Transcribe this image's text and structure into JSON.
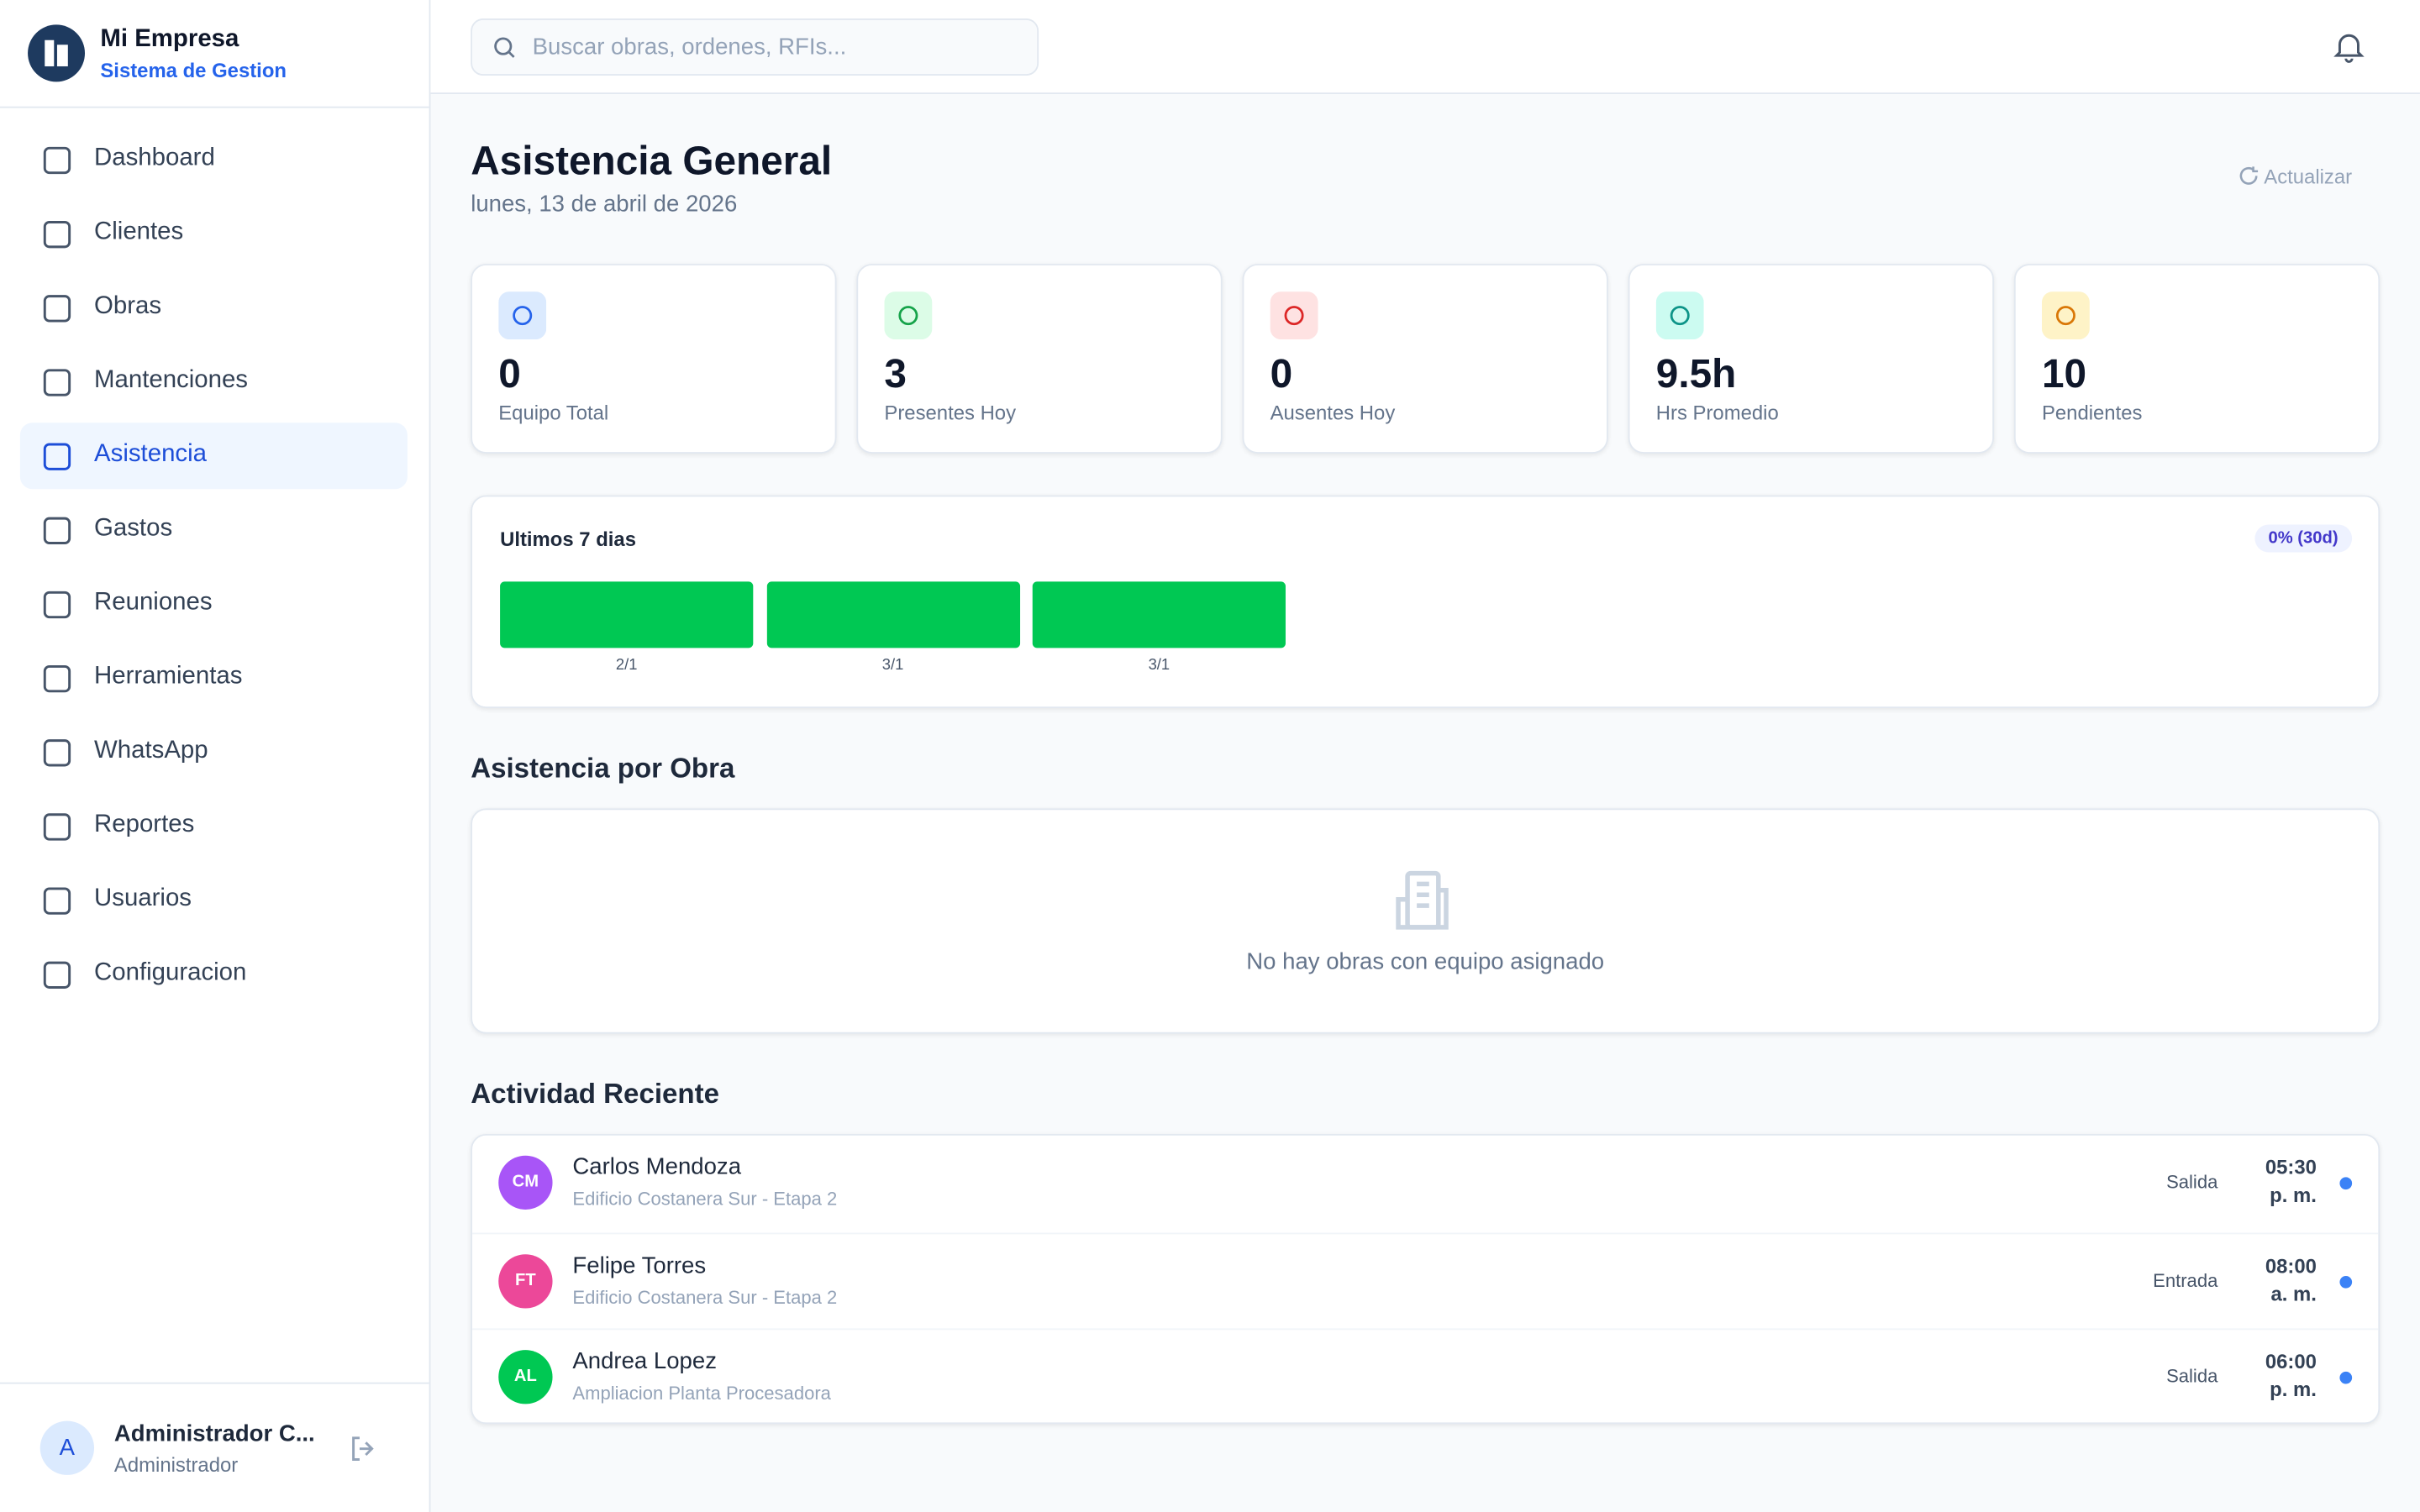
{
  "sidebar": {
    "brand": "Mi Empresa",
    "subtitle": "Sistema de Gestion",
    "nav": [
      {
        "label": "Dashboard",
        "active": false
      },
      {
        "label": "Clientes",
        "active": false
      },
      {
        "label": "Obras",
        "active": false
      },
      {
        "label": "Mantenciones",
        "active": false
      },
      {
        "label": "Asistencia",
        "active": true
      },
      {
        "label": "Gastos",
        "active": false
      },
      {
        "label": "Reuniones",
        "active": false
      },
      {
        "label": "Herramientas",
        "active": false
      },
      {
        "label": "WhatsApp",
        "active": false
      },
      {
        "label": "Reportes",
        "active": false
      },
      {
        "label": "Usuarios",
        "active": false
      },
      {
        "label": "Configuracion",
        "active": false
      }
    ],
    "user": {
      "initial": "A",
      "name": "Administrador C...",
      "role": "Administrador"
    }
  },
  "search_placeholder": "Buscar obras, ordenes, RFIs...",
  "page": {
    "title": "Asistencia General",
    "date": "lunes, 13 de abril de 2026",
    "refresh": "Actualizar"
  },
  "stats": [
    {
      "value": "0",
      "label": "Equipo Total",
      "color": "#2563eb",
      "bg": "#dbeafe"
    },
    {
      "value": "3",
      "label": "Presentes Hoy",
      "color": "#16a34a",
      "bg": "#dcfce7"
    },
    {
      "value": "0",
      "label": "Ausentes Hoy",
      "color": "#dc2626",
      "bg": "#fee2e2"
    },
    {
      "value": "9.5h",
      "label": "Hrs Promedio",
      "color": "#0d9488",
      "bg": "#ccfbf1"
    },
    {
      "value": "10",
      "label": "Pendientes",
      "color": "#d97706",
      "bg": "#fef3c7"
    }
  ],
  "week_chart": {
    "title": "Ultimos 7 dias",
    "badge": "0% (30d)",
    "bar_color": "#00c853",
    "bars": [
      "2/1",
      "3/1",
      "3/1"
    ]
  },
  "by_site": {
    "title": "Asistencia por Obra",
    "empty": "No hay obras con equipo asignado"
  },
  "activity": {
    "title": "Actividad Reciente",
    "items": [
      {
        "initials": "CM",
        "name": "Carlos Mendoza",
        "site": "Edificio Costanera Sur - Etapa 2",
        "type": "Salida",
        "time": "05:30",
        "period": "p. m.",
        "color": "#a855f7"
      },
      {
        "initials": "FT",
        "name": "Felipe Torres",
        "site": "Edificio Costanera Sur - Etapa 2",
        "type": "Entrada",
        "time": "08:00",
        "period": "a. m.",
        "color": "#ec4899"
      },
      {
        "initials": "AL",
        "name": "Andrea Lopez",
        "site": "Ampliacion Planta Procesadora",
        "type": "Salida",
        "time": "06:00",
        "period": "p. m.",
        "color": "#00c853"
      }
    ]
  }
}
